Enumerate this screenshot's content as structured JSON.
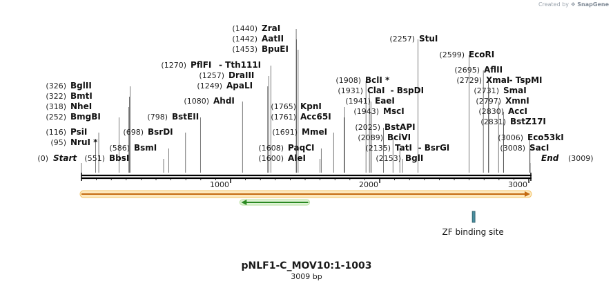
{
  "credit": {
    "prefix": "Created by",
    "brand": "SnapGene"
  },
  "map": {
    "name": "pNLF1-C_MOV10:1-1003",
    "length_label": "3009 bp",
    "length": 3009,
    "ruler_labels": [
      "1000",
      "2000",
      "3000"
    ]
  },
  "sites": [
    {
      "name": "NruI *",
      "pos": "(95)"
    },
    {
      "name": "PsiI",
      "pos": "(116)"
    },
    {
      "name": "BmgBI",
      "pos": "(252)"
    },
    {
      "name": "NheI",
      "pos": "(318)"
    },
    {
      "name": "BmtI",
      "pos": "(322)"
    },
    {
      "name": "BglII",
      "pos": "(326)"
    },
    {
      "name": "BbsI",
      "pos": "(551)"
    },
    {
      "name": "BsmI",
      "pos": "(586)"
    },
    {
      "name": "BsrDI",
      "pos": "(698)"
    },
    {
      "name": "BstEII",
      "pos": "(798)"
    },
    {
      "name": "AhdI",
      "pos": "(1080)"
    },
    {
      "name": "ApaLI",
      "pos": "(1249)"
    },
    {
      "name": "DraIII",
      "pos": "(1257)"
    },
    {
      "name": "PflFI",
      "name2": "Tth111I",
      "pos": "(1270)"
    },
    {
      "name": "ZraI",
      "pos": "(1440)"
    },
    {
      "name": "AatII",
      "pos": "(1442)"
    },
    {
      "name": "BpuEI",
      "pos": "(1453)"
    },
    {
      "name": "AleI",
      "pos": "(1600)"
    },
    {
      "name": "PaqCI",
      "pos": "(1608)"
    },
    {
      "name": "MmeI",
      "pos": "(1691)"
    },
    {
      "name": "Acc65I",
      "pos": "(1761)"
    },
    {
      "name": "KpnI",
      "pos": "(1765)"
    },
    {
      "name": "BclI *",
      "pos": "(1908)"
    },
    {
      "name": "ClaI",
      "name2": "BspDI",
      "pos": "(1931)"
    },
    {
      "name": "EaeI",
      "pos": "(1941)"
    },
    {
      "name": "MscI",
      "pos": "(1943)"
    },
    {
      "name": "BstAPI",
      "pos": "(2025)"
    },
    {
      "name": "BciVI",
      "pos": "(2089)"
    },
    {
      "name": "TatI",
      "name2": "BsrGI",
      "pos": "(2135)"
    },
    {
      "name": "BglI",
      "pos": "(2153)"
    },
    {
      "name": "StuI",
      "pos": "(2257)"
    },
    {
      "name": "EcoRI",
      "pos": "(2599)"
    },
    {
      "name": "AflII",
      "pos": "(2695)"
    },
    {
      "name": "XmaI",
      "name2": "TspMI",
      "pos": "(2729)"
    },
    {
      "name": "SmaI",
      "pos": "(2731)"
    },
    {
      "name": "XmnI",
      "pos": "(2797)"
    },
    {
      "name": "AccI",
      "pos": "(2830)"
    },
    {
      "name": "BstZ17I",
      "pos": "(2831)"
    },
    {
      "name": "Eco53kI",
      "pos": "(3006)"
    },
    {
      "name": "SacI",
      "pos": "(3008)"
    }
  ],
  "ends": {
    "start_label": "Start",
    "start_pos": "(0)",
    "end_label": "End",
    "end_pos": "(3009)"
  },
  "features": [
    {
      "name": "",
      "type": "orange-arrow",
      "from": 0,
      "to": 3009,
      "direction": "forward",
      "color": "#f0a030"
    },
    {
      "name": "",
      "type": "green-arrow",
      "from": 1071,
      "to": 1521,
      "direction": "reverse",
      "color": "#3aa832"
    },
    {
      "name": "ZF binding site",
      "type": "small-box",
      "from": 2620,
      "to": 2640,
      "color": "#4a8fa0"
    }
  ],
  "colors": {
    "backbone": "#000000",
    "orange_feature": "#f0a030",
    "green_feature": "#3aa832",
    "zf_site": "#4a8fa0"
  }
}
